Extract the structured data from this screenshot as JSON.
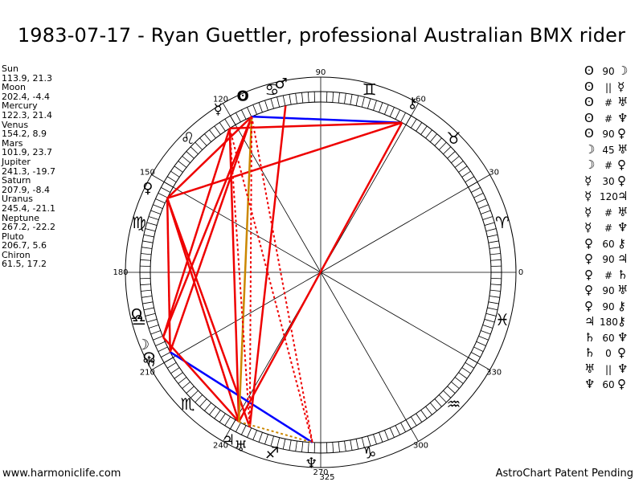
{
  "title": "1983-07-17 - Ryan Guettler, professional Australian BMX rider",
  "planets": [
    {
      "name": "Sun",
      "lon": 113.9,
      "lat": 21.3,
      "coords": "113.9, 21.3",
      "glyph": "ʘ"
    },
    {
      "name": "Moon",
      "lon": 202.4,
      "lat": -4.4,
      "coords": "202.4, -4.4",
      "glyph": "☽"
    },
    {
      "name": "Mercury",
      "lon": 122.3,
      "lat": 21.4,
      "coords": "122.3, 21.4",
      "glyph": "☿"
    },
    {
      "name": "Venus",
      "lon": 154.2,
      "lat": 8.9,
      "coords": "154.2, 8.9",
      "glyph": "♀"
    },
    {
      "name": "Mars",
      "lon": 101.9,
      "lat": 23.7,
      "coords": "101.9, 23.7",
      "glyph": "♂"
    },
    {
      "name": "Jupiter",
      "lon": 241.3,
      "lat": -19.7,
      "coords": "241.3, -19.7",
      "glyph": "♃"
    },
    {
      "name": "Saturn",
      "lon": 207.9,
      "lat": -8.4,
      "coords": "207.9, -8.4",
      "glyph": "♄"
    },
    {
      "name": "Uranus",
      "lon": 245.4,
      "lat": -21.1,
      "coords": "245.4, -21.1",
      "glyph": "♅"
    },
    {
      "name": "Neptune",
      "lon": 267.2,
      "lat": -22.2,
      "coords": "267.2, -22.2",
      "glyph": "♆"
    },
    {
      "name": "Pluto",
      "lon": 206.7,
      "lat": 5.6,
      "coords": "206.7, 5.6",
      "glyph": "☊"
    },
    {
      "name": "Chiron",
      "lon": 61.5,
      "lat": 17.2,
      "coords": "61.5, 17.2",
      "glyph": "⚷"
    }
  ],
  "aspect_list": [
    {
      "p1": "ʘ",
      "asp": "90",
      "p2": "☽"
    },
    {
      "p1": "ʘ",
      "asp": "||",
      "p2": "☿"
    },
    {
      "p1": "ʘ",
      "asp": "#",
      "p2": "♅"
    },
    {
      "p1": "ʘ",
      "asp": "#",
      "p2": "♆"
    },
    {
      "p1": "ʘ",
      "asp": "90",
      "p2": "♀"
    },
    {
      "p1": "☽",
      "asp": "45",
      "p2": "♅"
    },
    {
      "p1": "☽",
      "asp": "#",
      "p2": "♀"
    },
    {
      "p1": "☿",
      "asp": "30",
      "p2": "♀"
    },
    {
      "p1": "☿",
      "asp": "120",
      "p2": "♃"
    },
    {
      "p1": "☿",
      "asp": "#",
      "p2": "♅"
    },
    {
      "p1": "☿",
      "asp": "#",
      "p2": "♆"
    },
    {
      "p1": "♀",
      "asp": "60",
      "p2": "⚷"
    },
    {
      "p1": "♀",
      "asp": "90",
      "p2": "♃"
    },
    {
      "p1": "♀",
      "asp": "#",
      "p2": "♄"
    },
    {
      "p1": "♀",
      "asp": "90",
      "p2": "♅"
    },
    {
      "p1": "♀",
      "asp": "90",
      "p2": "⚷"
    },
    {
      "p1": "♃",
      "asp": "180",
      "p2": "⚷"
    },
    {
      "p1": "♄",
      "asp": "60",
      "p2": "♆"
    },
    {
      "p1": "♄",
      "asp": "0",
      "p2": "♀"
    },
    {
      "p1": "♅",
      "asp": "||",
      "p2": "♆"
    },
    {
      "p1": "♆",
      "asp": "60",
      "p2": "♀"
    }
  ],
  "chart_data": {
    "type": "astrological-wheel",
    "degree_labels": [
      "0",
      "30",
      "60",
      "90",
      "120",
      "150",
      "180",
      "210",
      "240",
      "270",
      "300",
      "330"
    ],
    "signs": [
      "♈",
      "♉",
      "♊",
      "♋",
      "♌",
      "♍",
      "♎",
      "♏",
      "♐",
      "♑",
      "♒",
      "♓"
    ],
    "node_glyph": "Ω",
    "node_lon": 193,
    "extra_point_label": "325",
    "extra_point_lon": 270,
    "aspect_lines": [
      {
        "a": 113.9,
        "b": 61.5,
        "style": "solid",
        "color": "#0000ff"
      },
      {
        "a": 113.9,
        "b": 154.2,
        "style": "solid",
        "color": "#ee0000"
      },
      {
        "a": 122.3,
        "b": 61.5,
        "style": "solid",
        "color": "#ee0000"
      },
      {
        "a": 154.2,
        "b": 61.5,
        "style": "solid",
        "color": "#ee0000"
      },
      {
        "a": 61.5,
        "b": 241.3,
        "style": "solid",
        "color": "#ee0000"
      },
      {
        "a": 154.2,
        "b": 241.3,
        "style": "solid",
        "color": "#ee0000"
      },
      {
        "a": 154.2,
        "b": 245.4,
        "style": "solid",
        "color": "#ee0000"
      },
      {
        "a": 207.9,
        "b": 267.2,
        "style": "solid",
        "color": "#0000ff"
      },
      {
        "a": 202.4,
        "b": 241.3,
        "style": "solid",
        "color": "#ee0000"
      },
      {
        "a": 113.9,
        "b": 202.4,
        "style": "solid",
        "color": "#ee0000"
      },
      {
        "a": 122.3,
        "b": 202.4,
        "style": "solid",
        "color": "#ee0000"
      },
      {
        "a": 122.3,
        "b": 241.3,
        "style": "solid",
        "color": "#ee0000"
      },
      {
        "a": 113.9,
        "b": 207.9,
        "style": "solid",
        "color": "#ee0000"
      },
      {
        "a": 154.2,
        "b": 207.9,
        "style": "solid",
        "color": "#ee0000"
      },
      {
        "a": 101.9,
        "b": 245.4,
        "style": "solid",
        "color": "#ee0000"
      },
      {
        "a": 113.9,
        "b": 241.3,
        "style": "solid",
        "color": "#cc8800"
      },
      {
        "a": 113.9,
        "b": 245.4,
        "style": "dotted",
        "color": "#ee0000"
      },
      {
        "a": 113.9,
        "b": 267.2,
        "style": "dotted",
        "color": "#ee0000"
      },
      {
        "a": 122.3,
        "b": 245.4,
        "style": "dotted",
        "color": "#ee0000"
      },
      {
        "a": 122.3,
        "b": 267.2,
        "style": "dotted",
        "color": "#ee0000"
      },
      {
        "a": 154.2,
        "b": 207.9,
        "style": "dotted",
        "color": "#ee0000"
      },
      {
        "a": 241.3,
        "b": 267.2,
        "style": "dotted",
        "color": "#cc8800"
      }
    ]
  },
  "footer": {
    "left": "www.harmoniclife.com",
    "right": "AstroChart Patent Pending"
  }
}
